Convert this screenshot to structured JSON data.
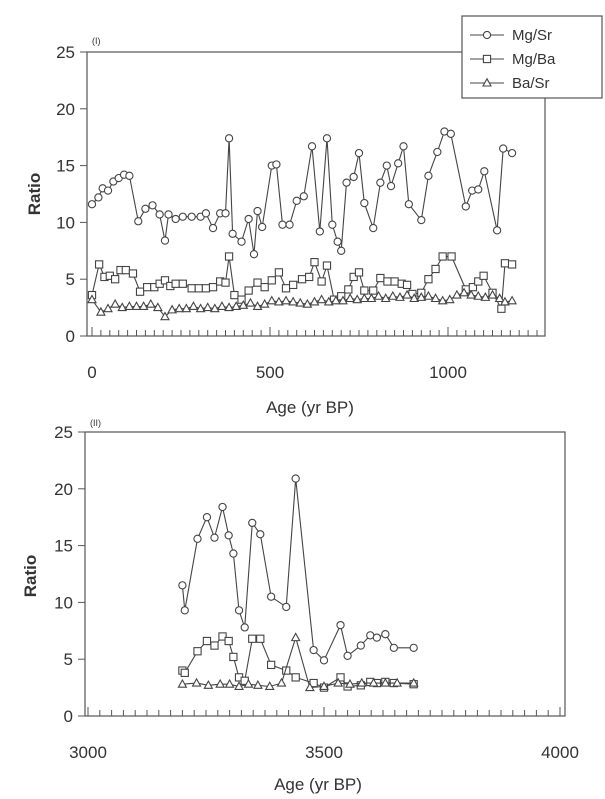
{
  "legend": {
    "entries": [
      "Mg/Sr",
      "Mg/Ba",
      "Ba/Sr"
    ],
    "markers": [
      "circle",
      "square",
      "triangle"
    ]
  },
  "chart_data": [
    {
      "type": "line",
      "panel_label": "(I)",
      "xlabel": "Age (yr  BP)",
      "ylabel": "Ratio",
      "xlim": [
        0,
        1250
      ],
      "ylim": [
        0,
        25
      ],
      "x_ticks": [
        0,
        500,
        1000
      ],
      "y_ticks": [
        0,
        5,
        10,
        15,
        20,
        25
      ],
      "series": [
        {
          "name": "Mg/Sr",
          "marker": "circle",
          "points": [
            [
              0,
              11.6
            ],
            [
              18,
              12.2
            ],
            [
              30,
              13.0
            ],
            [
              45,
              12.8
            ],
            [
              60,
              13.6
            ],
            [
              75,
              13.9
            ],
            [
              90,
              14.2
            ],
            [
              105,
              14.1
            ],
            [
              130,
              10.1
            ],
            [
              150,
              11.2
            ],
            [
              170,
              11.5
            ],
            [
              190,
              10.7
            ],
            [
              205,
              8.4
            ],
            [
              215,
              10.7
            ],
            [
              235,
              10.3
            ],
            [
              255,
              10.5
            ],
            [
              280,
              10.5
            ],
            [
              305,
              10.5
            ],
            [
              320,
              10.8
            ],
            [
              340,
              9.5
            ],
            [
              360,
              10.8
            ],
            [
              375,
              10.8
            ],
            [
              385,
              17.4
            ],
            [
              395,
              9.0
            ],
            [
              420,
              8.3
            ],
            [
              440,
              10.3
            ],
            [
              455,
              7.2
            ],
            [
              465,
              11.0
            ],
            [
              478,
              9.6
            ],
            [
              505,
              15.0
            ],
            [
              518,
              15.1
            ],
            [
              535,
              9.8
            ],
            [
              555,
              9.8
            ],
            [
              575,
              11.9
            ],
            [
              595,
              12.3
            ],
            [
              618,
              16.7
            ],
            [
              640,
              9.2
            ],
            [
              660,
              17.4
            ],
            [
              675,
              9.8
            ],
            [
              690,
              8.3
            ],
            [
              700,
              7.5
            ],
            [
              715,
              13.5
            ],
            [
              735,
              14.0
            ],
            [
              750,
              16.1
            ],
            [
              765,
              11.7
            ],
            [
              790,
              9.5
            ],
            [
              810,
              13.5
            ],
            [
              828,
              15.0
            ],
            [
              840,
              13.2
            ],
            [
              860,
              15.2
            ],
            [
              875,
              16.7
            ],
            [
              890,
              11.6
            ],
            [
              925,
              10.2
            ],
            [
              945,
              14.1
            ],
            [
              970,
              16.2
            ],
            [
              990,
              18.0
            ],
            [
              1008,
              17.8
            ],
            [
              1050,
              11.4
            ],
            [
              1068,
              12.8
            ],
            [
              1085,
              12.9
            ],
            [
              1102,
              14.5
            ],
            [
              1138,
              9.3
            ],
            [
              1155,
              16.5
            ],
            [
              1180,
              16.1
            ]
          ]
        },
        {
          "name": "Mg/Ba",
          "marker": "square",
          "points": [
            [
              0,
              3.6
            ],
            [
              20,
              6.3
            ],
            [
              35,
              5.2
            ],
            [
              50,
              5.3
            ],
            [
              65,
              5.0
            ],
            [
              80,
              5.8
            ],
            [
              95,
              5.8
            ],
            [
              115,
              5.5
            ],
            [
              135,
              3.9
            ],
            [
              155,
              4.3
            ],
            [
              175,
              4.3
            ],
            [
              190,
              4.6
            ],
            [
              205,
              4.9
            ],
            [
              220,
              4.4
            ],
            [
              235,
              4.6
            ],
            [
              255,
              4.6
            ],
            [
              280,
              4.2
            ],
            [
              300,
              4.2
            ],
            [
              320,
              4.2
            ],
            [
              340,
              4.3
            ],
            [
              360,
              4.8
            ],
            [
              375,
              4.7
            ],
            [
              385,
              7.0
            ],
            [
              400,
              3.6
            ],
            [
              420,
              3.2
            ],
            [
              440,
              4.0
            ],
            [
              465,
              4.7
            ],
            [
              485,
              4.3
            ],
            [
              505,
              4.9
            ],
            [
              525,
              5.6
            ],
            [
              545,
              4.2
            ],
            [
              565,
              4.5
            ],
            [
              590,
              5.0
            ],
            [
              610,
              5.2
            ],
            [
              625,
              6.5
            ],
            [
              645,
              4.8
            ],
            [
              660,
              6.2
            ],
            [
              680,
              3.2
            ],
            [
              700,
              3.5
            ],
            [
              720,
              4.1
            ],
            [
              735,
              5.2
            ],
            [
              750,
              5.6
            ],
            [
              765,
              4.0
            ],
            [
              790,
              4.0
            ],
            [
              810,
              5.1
            ],
            [
              830,
              4.8
            ],
            [
              850,
              4.8
            ],
            [
              870,
              4.6
            ],
            [
              885,
              4.5
            ],
            [
              900,
              3.7
            ],
            [
              925,
              3.8
            ],
            [
              945,
              5.0
            ],
            [
              965,
              5.9
            ],
            [
              985,
              7.0
            ],
            [
              1010,
              7.0
            ],
            [
              1050,
              4.1
            ],
            [
              1070,
              4.3
            ],
            [
              1085,
              4.8
            ],
            [
              1100,
              5.3
            ],
            [
              1125,
              3.8
            ],
            [
              1150,
              2.4
            ],
            [
              1160,
              6.4
            ],
            [
              1180,
              6.3
            ]
          ]
        },
        {
          "name": "Ba/Sr",
          "marker": "triangle",
          "points": [
            [
              0,
              3.2
            ],
            [
              25,
              2.1
            ],
            [
              45,
              2.4
            ],
            [
              65,
              2.8
            ],
            [
              85,
              2.5
            ],
            [
              105,
              2.6
            ],
            [
              125,
              2.6
            ],
            [
              145,
              2.6
            ],
            [
              165,
              2.8
            ],
            [
              185,
              2.5
            ],
            [
              205,
              1.7
            ],
            [
              225,
              2.3
            ],
            [
              245,
              2.4
            ],
            [
              265,
              2.4
            ],
            [
              285,
              2.6
            ],
            [
              305,
              2.4
            ],
            [
              325,
              2.5
            ],
            [
              345,
              2.4
            ],
            [
              365,
              2.6
            ],
            [
              385,
              2.5
            ],
            [
              405,
              2.6
            ],
            [
              425,
              2.7
            ],
            [
              445,
              2.9
            ],
            [
              465,
              2.6
            ],
            [
              485,
              2.8
            ],
            [
              505,
              3.1
            ],
            [
              525,
              3.0
            ],
            [
              545,
              3.1
            ],
            [
              565,
              3.0
            ],
            [
              585,
              2.9
            ],
            [
              605,
              2.8
            ],
            [
              625,
              3.0
            ],
            [
              645,
              3.2
            ],
            [
              665,
              3.0
            ],
            [
              685,
              3.1
            ],
            [
              705,
              3.1
            ],
            [
              725,
              3.3
            ],
            [
              745,
              3.2
            ],
            [
              765,
              3.3
            ],
            [
              785,
              3.3
            ],
            [
              805,
              3.5
            ],
            [
              825,
              3.3
            ],
            [
              845,
              3.5
            ],
            [
              865,
              3.4
            ],
            [
              885,
              3.6
            ],
            [
              905,
              3.3
            ],
            [
              925,
              3.4
            ],
            [
              945,
              3.5
            ],
            [
              965,
              3.3
            ],
            [
              985,
              3.1
            ],
            [
              1005,
              3.2
            ],
            [
              1025,
              3.6
            ],
            [
              1045,
              3.8
            ],
            [
              1065,
              3.6
            ],
            [
              1085,
              3.5
            ],
            [
              1105,
              3.4
            ],
            [
              1125,
              3.6
            ],
            [
              1145,
              3.3
            ],
            [
              1160,
              3.0
            ],
            [
              1180,
              3.1
            ]
          ]
        }
      ]
    },
    {
      "type": "line",
      "panel_label": "(II)",
      "xlabel": "Age (yr  BP)",
      "ylabel": "Ratio",
      "xlim": [
        3000,
        4000
      ],
      "ylim": [
        0,
        25
      ],
      "x_ticks": [
        3000,
        3500,
        4000
      ],
      "y_ticks": [
        0,
        5,
        10,
        15,
        20,
        25
      ],
      "series": [
        {
          "name": "Mg/Sr",
          "marker": "circle",
          "points": [
            [
              3200,
              11.5
            ],
            [
              3205,
              9.3
            ],
            [
              3232,
              15.6
            ],
            [
              3252,
              17.5
            ],
            [
              3268,
              15.7
            ],
            [
              3285,
              18.4
            ],
            [
              3298,
              15.9
            ],
            [
              3308,
              14.3
            ],
            [
              3320,
              9.3
            ],
            [
              3332,
              7.8
            ],
            [
              3348,
              17.0
            ],
            [
              3365,
              16.0
            ],
            [
              3388,
              10.5
            ],
            [
              3420,
              9.6
            ],
            [
              3440,
              20.9
            ],
            [
              3478,
              5.8
            ],
            [
              3500,
              4.9
            ],
            [
              3535,
              8.0
            ],
            [
              3550,
              5.3
            ],
            [
              3578,
              6.2
            ],
            [
              3598,
              7.1
            ],
            [
              3612,
              6.9
            ],
            [
              3630,
              7.2
            ],
            [
              3648,
              6.0
            ],
            [
              3690,
              6.0
            ]
          ]
        },
        {
          "name": "Mg/Ba",
          "marker": "square",
          "points": [
            [
              3200,
              4.0
            ],
            [
              3205,
              3.8
            ],
            [
              3232,
              5.7
            ],
            [
              3252,
              6.6
            ],
            [
              3268,
              6.2
            ],
            [
              3285,
              7.0
            ],
            [
              3298,
              6.6
            ],
            [
              3308,
              5.2
            ],
            [
              3320,
              3.4
            ],
            [
              3332,
              3.1
            ],
            [
              3348,
              6.8
            ],
            [
              3365,
              6.8
            ],
            [
              3388,
              4.5
            ],
            [
              3420,
              4.0
            ],
            [
              3440,
              3.4
            ],
            [
              3478,
              2.9
            ],
            [
              3500,
              2.5
            ],
            [
              3535,
              3.4
            ],
            [
              3550,
              2.6
            ],
            [
              3578,
              2.7
            ],
            [
              3598,
              3.0
            ],
            [
              3612,
              2.9
            ],
            [
              3630,
              3.0
            ],
            [
              3648,
              2.9
            ],
            [
              3690,
              2.8
            ]
          ]
        },
        {
          "name": "Ba/Sr",
          "marker": "triangle",
          "points": [
            [
              3200,
              2.8
            ],
            [
              3230,
              2.9
            ],
            [
              3255,
              2.7
            ],
            [
              3280,
              2.8
            ],
            [
              3300,
              2.8
            ],
            [
              3320,
              2.6
            ],
            [
              3340,
              2.8
            ],
            [
              3360,
              2.7
            ],
            [
              3385,
              2.6
            ],
            [
              3410,
              2.9
            ],
            [
              3440,
              6.9
            ],
            [
              3470,
              2.5
            ],
            [
              3500,
              2.6
            ],
            [
              3530,
              2.9
            ],
            [
              3555,
              2.8
            ],
            [
              3580,
              2.9
            ],
            [
              3605,
              2.9
            ],
            [
              3630,
              2.9
            ],
            [
              3655,
              2.9
            ],
            [
              3690,
              2.9
            ]
          ]
        }
      ]
    }
  ]
}
